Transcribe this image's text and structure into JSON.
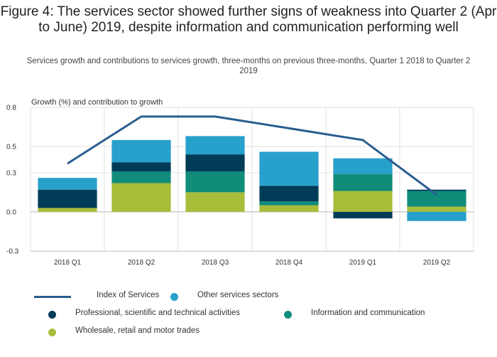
{
  "title": "Figure 4: The services sector showed further signs of weakness into Quarter 2 (Apr to June) 2019, despite information and communication performing well",
  "subtitle": "Services growth and contributions to services growth, three-months on previous three-months, Quarter 1 2018 to Quarter 2 2019",
  "colors": {
    "index": "#2a5d8f",
    "other": "#27a0cc",
    "professional": "#003c57",
    "information": "#118c7b",
    "wholesale": "#a8bd3a"
  },
  "chart_data": {
    "type": "bar",
    "stacked": true,
    "title": "Figure 4: The services sector showed further signs of weakness into Quarter 2 (Apr to June) 2019, despite information and communication performing well",
    "subtitle": "Services growth and contributions to services growth, three-months on previous three-months, Quarter 1 2018 to Quarter 2 2019",
    "ylabel": "Growth (%) and contribution to growth",
    "ylim": [
      -0.3,
      0.8
    ],
    "yticks": [
      0.8,
      0.5,
      0.3,
      0.0,
      -0.3
    ],
    "ytick_labels": [
      "0.8",
      "0.5",
      "0.3",
      "0.0",
      "-0.3"
    ],
    "categories": [
      "2018 Q1",
      "2018 Q2",
      "2018 Q3",
      "2018 Q4",
      "2019 Q1",
      "2019 Q2"
    ],
    "series": [
      {
        "name": "Wholesale, retail and motor trades",
        "color_key": "wholesale",
        "values": [
          0.03,
          0.22,
          0.15,
          0.05,
          0.16,
          0.04
        ]
      },
      {
        "name": "Information and communication",
        "color_key": "information",
        "values": [
          0.0,
          0.09,
          0.16,
          0.03,
          0.13,
          0.12
        ]
      },
      {
        "name": "Professional, scientific and technical activities",
        "color_key": "professional",
        "values": [
          0.14,
          0.07,
          0.13,
          0.12,
          -0.05,
          0.01
        ]
      },
      {
        "name": "Other services sectors",
        "color_key": "other",
        "values": [
          0.09,
          0.17,
          0.14,
          0.26,
          0.12,
          -0.07
        ]
      }
    ],
    "line": {
      "name": "Index of Services",
      "color_key": "index",
      "values": [
        0.37,
        0.73,
        0.73,
        0.64,
        0.55,
        0.13
      ]
    },
    "grid": true,
    "legend_position": "bottom"
  },
  "legend": [
    {
      "label": "Index of Services",
      "kind": "line",
      "color_key": "index"
    },
    {
      "label": "Other services sectors",
      "kind": "dot",
      "color_key": "other"
    },
    {
      "label": "Professional, scientific and technical activities",
      "kind": "dot",
      "color_key": "professional"
    },
    {
      "label": "Information and communication",
      "kind": "dot",
      "color_key": "information"
    },
    {
      "label": "Wholesale, retail and motor trades",
      "kind": "dot",
      "color_key": "wholesale"
    }
  ]
}
